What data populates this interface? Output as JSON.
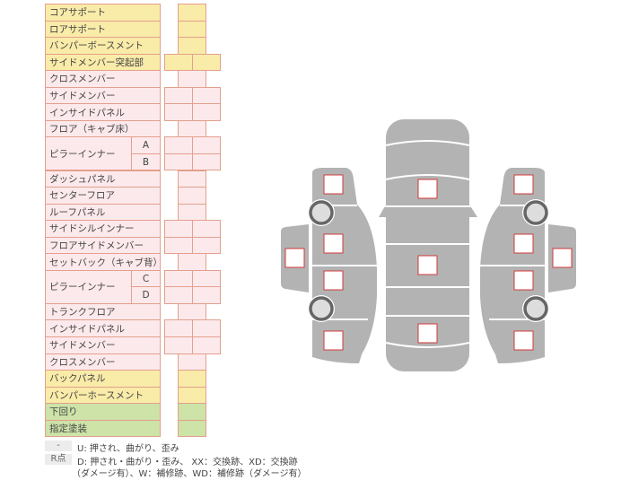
{
  "rows": [
    {
      "label": "コアサポート",
      "color": "y",
      "boxes": 1
    },
    {
      "label": "ロアサポート",
      "color": "y",
      "boxes": 1
    },
    {
      "label": "バンパーボースメント",
      "color": "y",
      "boxes": 1
    },
    {
      "label": "サイドメンバー突起部",
      "color": "y",
      "boxes": 2
    },
    {
      "label": "クロスメンバー",
      "color": "p",
      "boxes": 1
    },
    {
      "label": "サイドメンバー",
      "color": "p",
      "boxes": 2
    },
    {
      "label": "インサイドパネル",
      "color": "p",
      "boxes": 2
    },
    {
      "label": "フロア（キャブ床）",
      "color": "p",
      "boxes": 1
    },
    {
      "label": "ピラーインナー",
      "color": "p",
      "boxes": 2,
      "subs": [
        "A",
        "B"
      ]
    },
    {
      "label": "ダッシュパネル",
      "color": "p",
      "boxes": 1
    },
    {
      "label": "センターフロア",
      "color": "p",
      "boxes": 1
    },
    {
      "label": "ルーフパネル",
      "color": "p",
      "boxes": 1
    },
    {
      "label": "サイドシルインナー",
      "color": "p",
      "boxes": 2
    },
    {
      "label": "フロアサイドメンバー",
      "color": "p",
      "boxes": 2
    },
    {
      "label": "セットバック（キャブ背）",
      "color": "p",
      "boxes": 1
    },
    {
      "label": "ピラーインナー",
      "color": "p",
      "boxes": 2,
      "subs": [
        "C",
        "D"
      ]
    },
    {
      "label": "トランクフロア",
      "color": "p",
      "boxes": 1
    },
    {
      "label": "インサイドパネル",
      "color": "p",
      "boxes": 2
    },
    {
      "label": "サイドメンバー",
      "color": "p",
      "boxes": 2
    },
    {
      "label": "クロスメンバー",
      "color": "p",
      "boxes": 1
    },
    {
      "label": "バックパネル",
      "color": "y",
      "boxes": 1
    },
    {
      "label": "バンパーホースメント",
      "color": "y",
      "boxes": 1
    },
    {
      "label": "下回り",
      "color": "g",
      "boxes": 1
    },
    {
      "label": "指定塗装",
      "color": "g",
      "boxes": 1
    }
  ],
  "legend": {
    "dash_label": "-",
    "dash_text": "U: 押され、曲がり、歪み",
    "r_label": "R点",
    "r_text1": "D: 押され・曲がり・歪み、 XX：交換跡、XD：交換跡",
    "r_text2": "（ダメージ有）、W：補修跡、WD：補修跡（ダメージ有）"
  },
  "colors": {
    "y": "#f9eba8",
    "p": "#fce9ec",
    "g": "#cde3a8",
    "border": "#e3a08c",
    "car": "#b3b3b3",
    "mark": "#d23a3a"
  }
}
